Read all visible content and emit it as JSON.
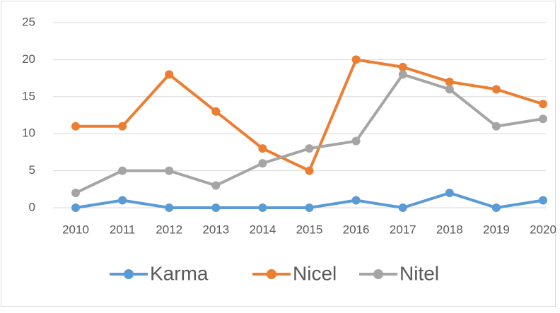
{
  "chart_data": {
    "type": "line",
    "categories": [
      "2010",
      "2011",
      "2012",
      "2013",
      "2014",
      "2015",
      "2016",
      "2017",
      "2018",
      "2019",
      "2020"
    ],
    "series": [
      {
        "name": "Karma",
        "color": "#5b9bd5",
        "values": [
          0,
          1,
          0,
          0,
          0,
          0,
          1,
          0,
          2,
          0,
          1
        ]
      },
      {
        "name": "Nicel",
        "color": "#ed7d31",
        "values": [
          11,
          11,
          18,
          13,
          8,
          5,
          20,
          19,
          17,
          16,
          14
        ]
      },
      {
        "name": "Nitel",
        "color": "#a5a5a5",
        "values": [
          2,
          5,
          5,
          3,
          6,
          8,
          9,
          18,
          16,
          11,
          12
        ]
      }
    ],
    "ylim": [
      0,
      25
    ],
    "yticks": [
      0,
      5,
      10,
      15,
      20,
      25
    ],
    "grid": true,
    "legend": "bottom"
  }
}
